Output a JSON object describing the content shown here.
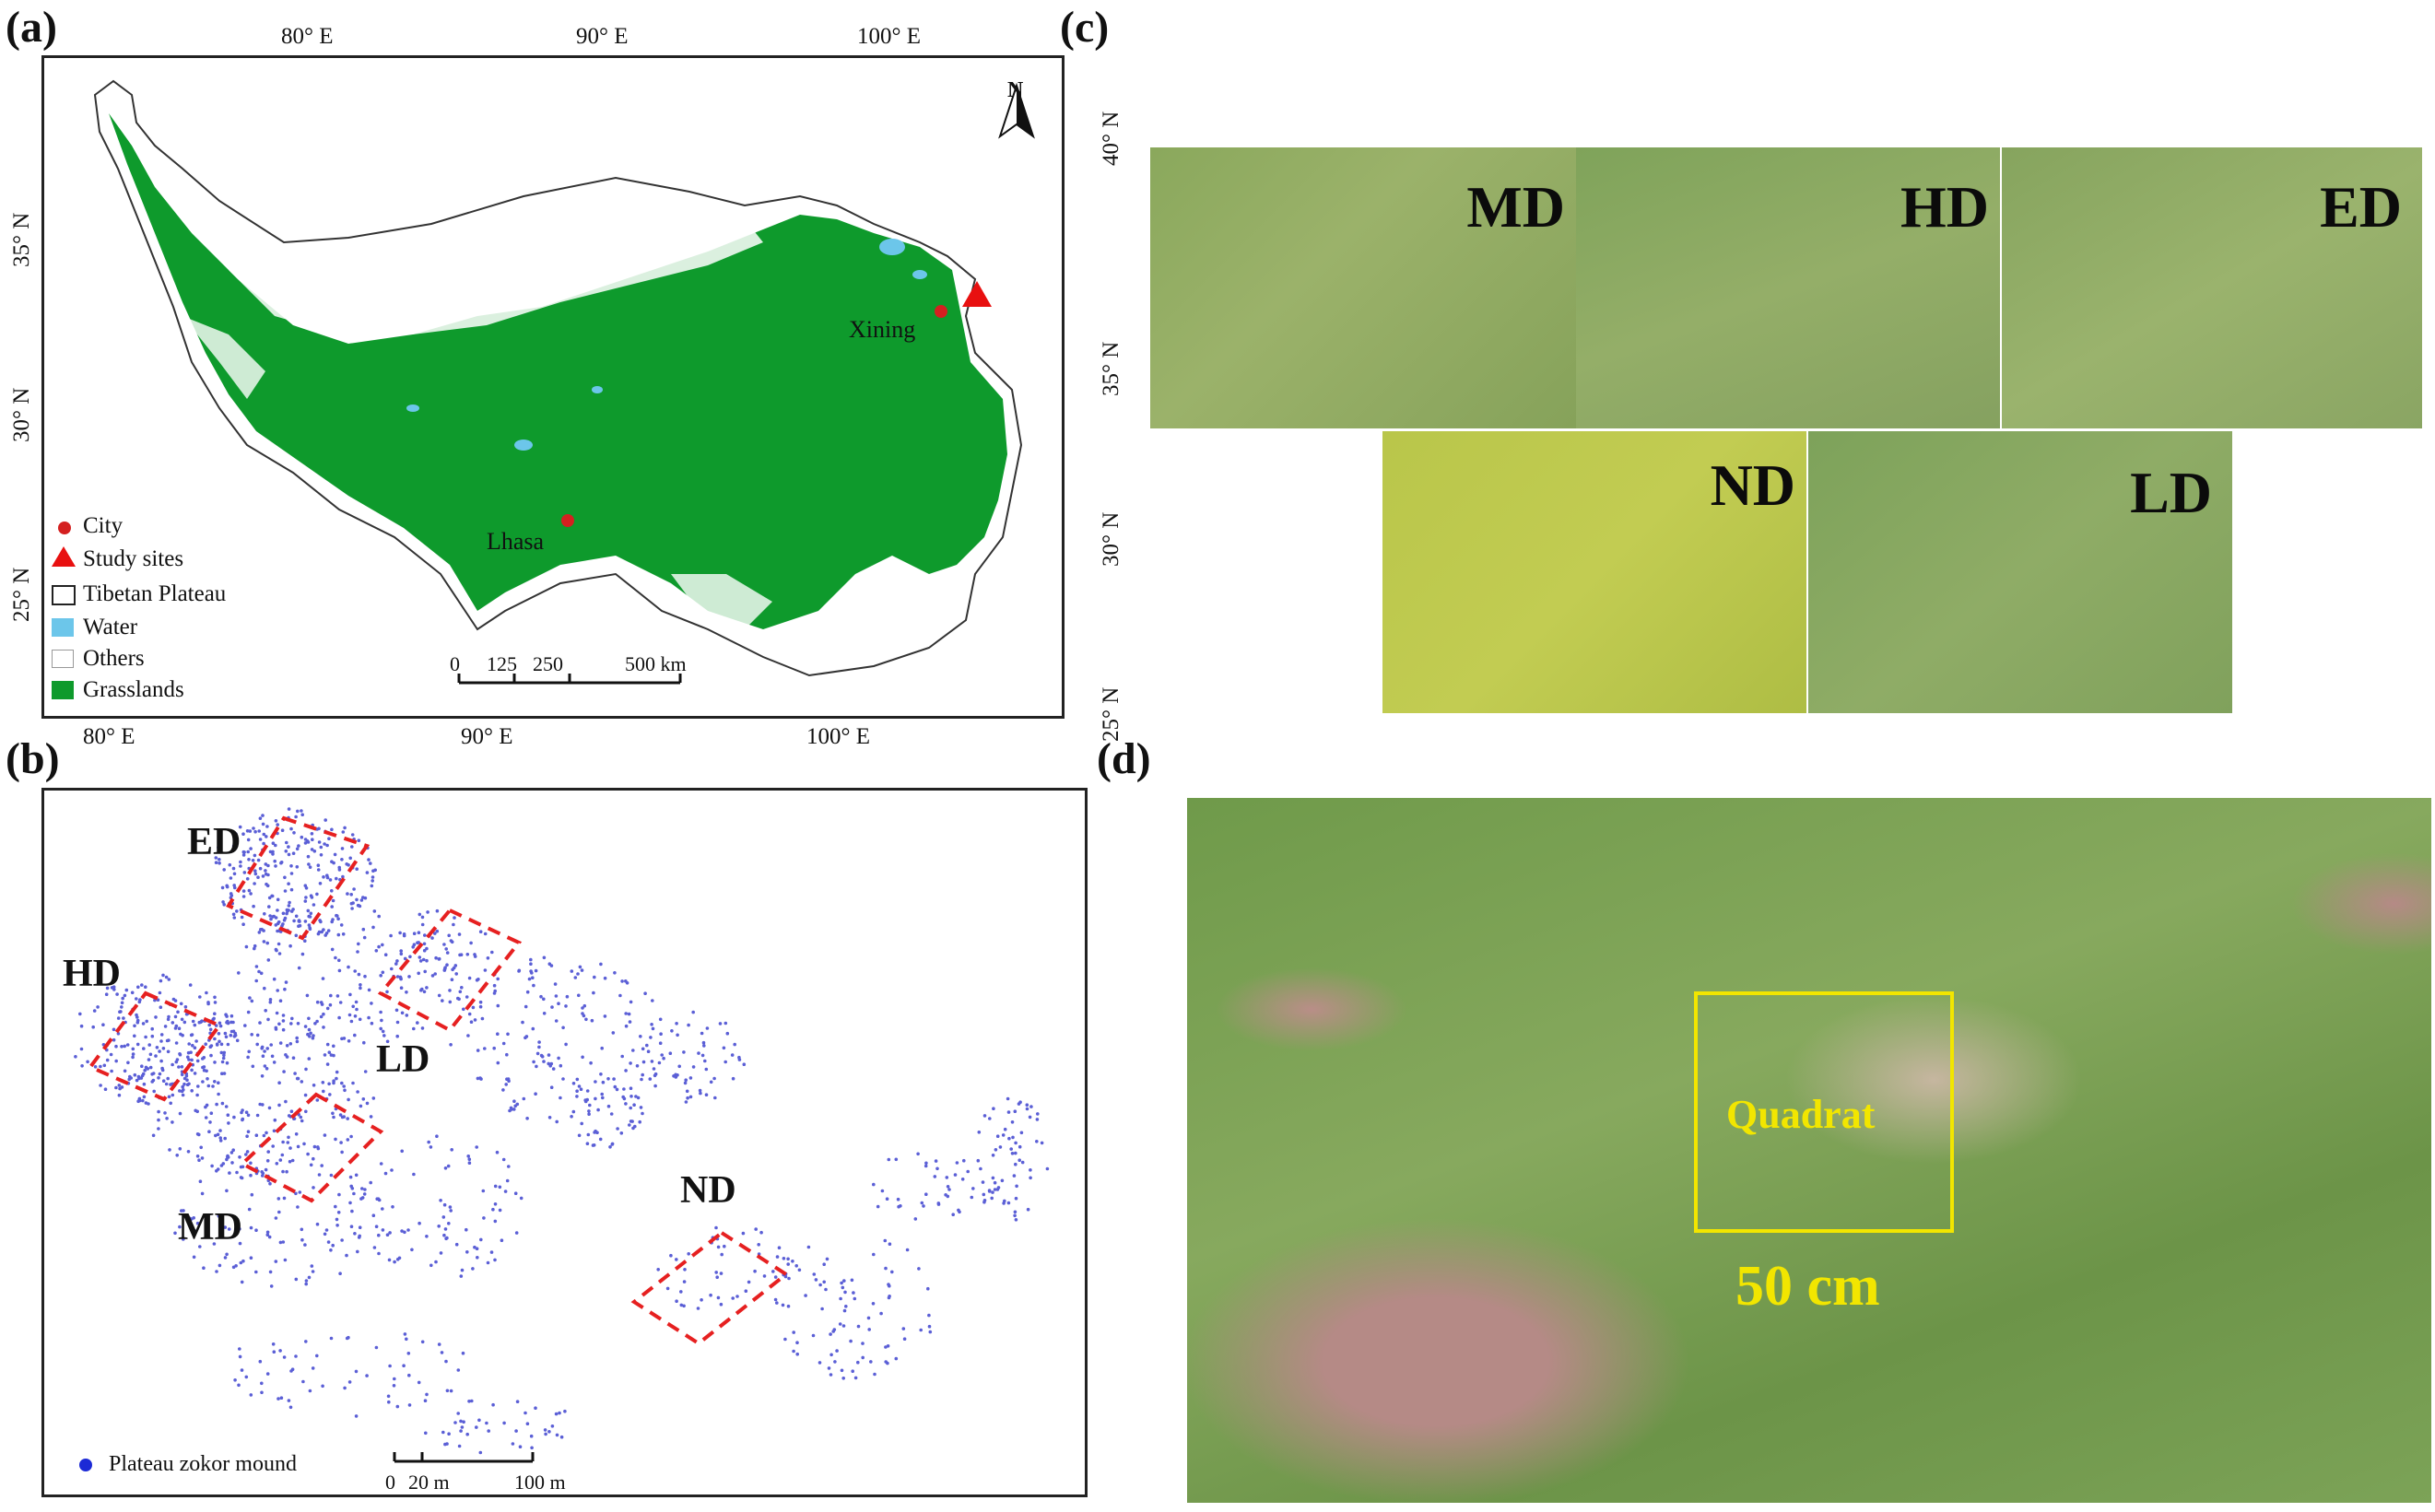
{
  "panels": {
    "a": "(a)",
    "b": "(b)",
    "c": "(c)",
    "d": "(d)"
  },
  "map_a": {
    "top_ticks": [
      "80° E",
      "90° E",
      "100° E"
    ],
    "bottom_ticks": [
      "80° E",
      "90° E",
      "100° E"
    ],
    "left_ticks": [
      "35° N",
      "30° N",
      "25° N"
    ],
    "right_ticks": [
      "40° N",
      "35° N",
      "30° N",
      "25° N"
    ],
    "north_label": "N",
    "cities": [
      "Xining",
      "Lhasa"
    ],
    "scale": [
      "0",
      "125",
      "250",
      "500 km"
    ],
    "legend": [
      {
        "label": "City",
        "symbol": "dot",
        "color": "#d42020"
      },
      {
        "label": "Study sites",
        "symbol": "triangle",
        "color": "#e81010"
      },
      {
        "label": "Tibetan Plateau",
        "symbol": "box-outline",
        "color": "#222222"
      },
      {
        "label": "Water",
        "symbol": "box",
        "color": "#6cc6ea"
      },
      {
        "label": "Others",
        "symbol": "box-outline",
        "color": "#ffffff"
      },
      {
        "label": "Grasslands",
        "symbol": "box",
        "color": "#0e9a2c"
      }
    ],
    "colors": {
      "grassland": "#0e9a2c",
      "water": "#6cc6ea",
      "city": "#d42020",
      "site": "#e81010"
    }
  },
  "map_b": {
    "plots": [
      "ED",
      "HD",
      "LD",
      "MD",
      "ND"
    ],
    "legend_label": "Plateau zokor mound",
    "scale": [
      "0",
      "20 m",
      "100 m"
    ],
    "colors": {
      "mound": "#5b5fd6",
      "plot_outline": "#e62020"
    }
  },
  "panel_c": {
    "tiles_top": [
      "MD",
      "HD",
      "ED"
    ],
    "tiles_bottom": [
      "ND",
      "LD"
    ]
  },
  "panel_d": {
    "quadrat_label": "Quadrat",
    "size_label": "50 cm",
    "colors": {
      "quadrat": "#f2e600"
    }
  }
}
